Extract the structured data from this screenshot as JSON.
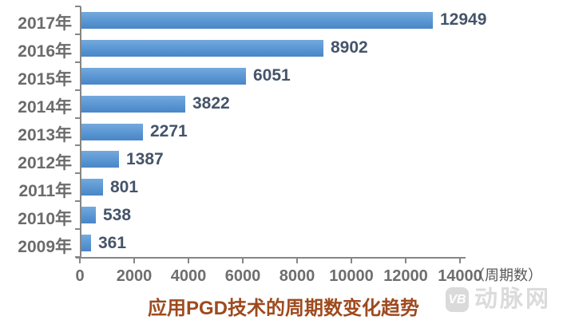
{
  "chart_data": {
    "type": "bar",
    "orientation": "horizontal",
    "title": "应用PGD技术的周期数变化趋势",
    "categories": [
      "2017年",
      "2016年",
      "2015年",
      "2014年",
      "2013年",
      "2012年",
      "2011年",
      "2010年",
      "2009年"
    ],
    "values": [
      12949,
      8902,
      6051,
      3822,
      2271,
      1387,
      801,
      538,
      361
    ],
    "xlabel": "（周期数）",
    "xlim": [
      0,
      14000
    ],
    "xticks": [
      0,
      2000,
      4000,
      6000,
      8000,
      10000,
      12000,
      14000
    ],
    "grid": false,
    "legend": "none",
    "bar_color": "#5b9bd5",
    "value_label_color": "#44546a",
    "title_color": "#9e4a1e",
    "axis_color": "#868686"
  },
  "watermark": {
    "badge": "VB",
    "text": "动脉网"
  }
}
